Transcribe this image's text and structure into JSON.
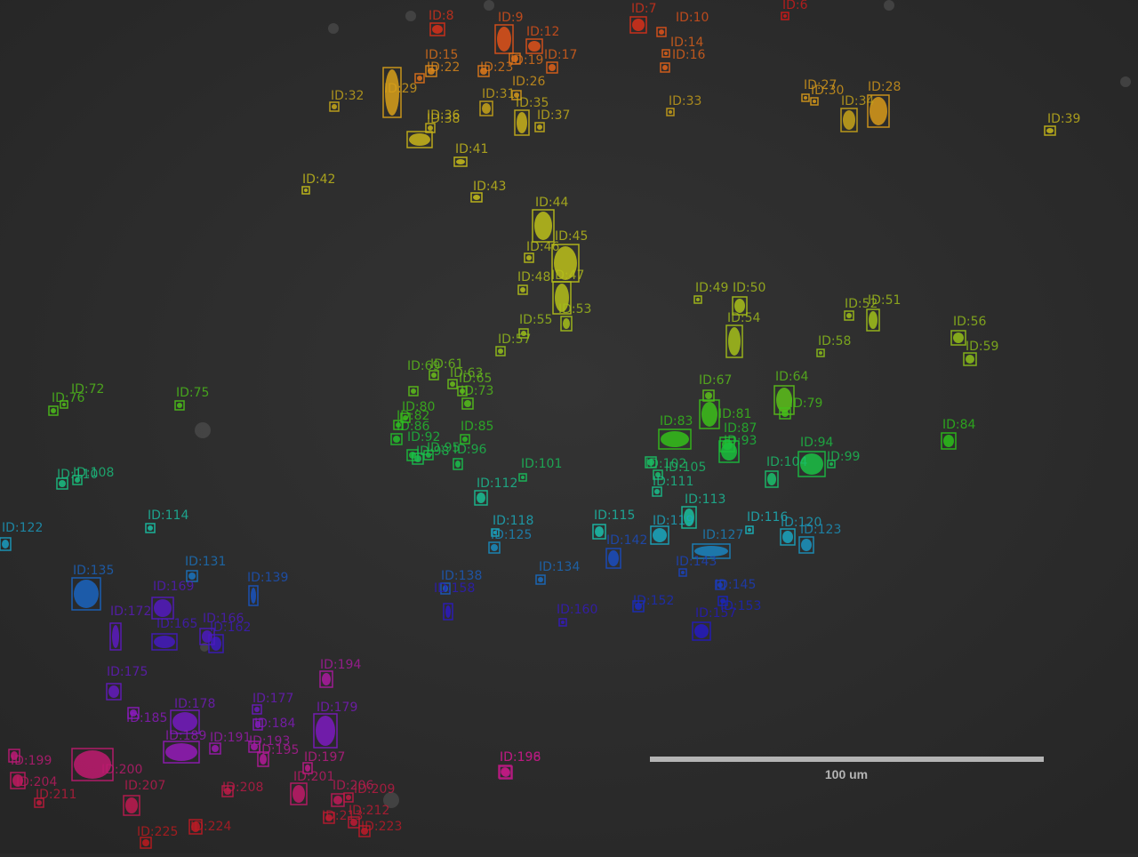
{
  "image": {
    "description": "Fluorescence/phase-contrast microscopy field with labeled detections",
    "background_color": "#2a2a2a"
  },
  "scale_bar": {
    "label": "100 um",
    "color": "#b4b4b4"
  },
  "detections": [
    {
      "id": "ID:6",
      "color": "#d11a1a"
    },
    {
      "id": "ID:7",
      "color": "#d8301a"
    },
    {
      "id": "ID:8",
      "color": "#d8301a"
    },
    {
      "id": "ID:9",
      "color": "#e0521a"
    },
    {
      "id": "ID:10",
      "color": "#e0521a"
    },
    {
      "id": "ID:12",
      "color": "#e0521a"
    },
    {
      "id": "ID:14",
      "color": "#e0621a"
    },
    {
      "id": "ID:15",
      "color": "#e0721a"
    },
    {
      "id": "ID:16",
      "color": "#e0621a"
    },
    {
      "id": "ID:17",
      "color": "#e0621a"
    },
    {
      "id": "ID:19",
      "color": "#e0721a"
    },
    {
      "id": "ID:22",
      "color": "#e08a1a"
    },
    {
      "id": "ID:23",
      "color": "#e07a1a"
    },
    {
      "id": "ID:26",
      "color": "#d89a1a"
    },
    {
      "id": "ID:27",
      "color": "#d89a1a"
    },
    {
      "id": "ID:28",
      "color": "#d89a1a"
    },
    {
      "id": "ID:29",
      "color": "#d8a01a"
    },
    {
      "id": "ID:30",
      "color": "#d89a1a"
    },
    {
      "id": "ID:31",
      "color": "#c8a41a"
    },
    {
      "id": "ID:32",
      "color": "#c8a81a"
    },
    {
      "id": "ID:33",
      "color": "#c8a01a"
    },
    {
      "id": "ID:34",
      "color": "#c8a41a"
    },
    {
      "id": "ID:35",
      "color": "#c8b01a"
    },
    {
      "id": "ID:36",
      "color": "#c8b41a"
    },
    {
      "id": "ID:37",
      "color": "#c8b01a"
    },
    {
      "id": "ID:38",
      "color": "#c8b41a"
    },
    {
      "id": "ID:39",
      "color": "#c8b81a"
    },
    {
      "id": "ID:41",
      "color": "#c8bc1a"
    },
    {
      "id": "ID:42",
      "color": "#c8c01a"
    },
    {
      "id": "ID:43",
      "color": "#c8c01a"
    },
    {
      "id": "ID:44",
      "color": "#bcc01a"
    },
    {
      "id": "ID:45",
      "color": "#bcc01a"
    },
    {
      "id": "ID:46",
      "color": "#bcc01a"
    },
    {
      "id": "ID:47",
      "color": "#b4c01a"
    },
    {
      "id": "ID:48",
      "color": "#b4c01a"
    },
    {
      "id": "ID:49",
      "color": "#a8c01a"
    },
    {
      "id": "ID:50",
      "color": "#a8c01a"
    },
    {
      "id": "ID:51",
      "color": "#a0c01a"
    },
    {
      "id": "ID:52",
      "color": "#a0c01a"
    },
    {
      "id": "ID:53",
      "color": "#a4c01a"
    },
    {
      "id": "ID:54",
      "color": "#a4c01a"
    },
    {
      "id": "ID:55",
      "color": "#9cc01a"
    },
    {
      "id": "ID:56",
      "color": "#94c01a"
    },
    {
      "id": "ID:57",
      "color": "#94c01a"
    },
    {
      "id": "ID:58",
      "color": "#8cc01a"
    },
    {
      "id": "ID:59",
      "color": "#8cc01a"
    },
    {
      "id": "ID:61",
      "color": "#6cc01a"
    },
    {
      "id": "ID:63",
      "color": "#6cc01a"
    },
    {
      "id": "ID:64",
      "color": "#5cc01a"
    },
    {
      "id": "ID:65",
      "color": "#64c01a"
    },
    {
      "id": "ID:67",
      "color": "#5cc01a"
    },
    {
      "id": "ID:69",
      "color": "#5cc01a"
    },
    {
      "id": "ID:72",
      "color": "#54c01a"
    },
    {
      "id": "ID:73",
      "color": "#54c01a"
    },
    {
      "id": "ID:75",
      "color": "#4cc01a"
    },
    {
      "id": "ID:76",
      "color": "#4cc01a"
    },
    {
      "id": "ID:79",
      "color": "#44c01a"
    },
    {
      "id": "ID:80",
      "color": "#3cc01a"
    },
    {
      "id": "ID:81",
      "color": "#3cc01a"
    },
    {
      "id": "ID:82",
      "color": "#34c01a"
    },
    {
      "id": "ID:83",
      "color": "#34c01a"
    },
    {
      "id": "ID:84",
      "color": "#2cc01a"
    },
    {
      "id": "ID:85",
      "color": "#2cc024"
    },
    {
      "id": "ID:86",
      "color": "#24c02c"
    },
    {
      "id": "ID:87",
      "color": "#24c02c"
    },
    {
      "id": "ID:92",
      "color": "#1ac03c"
    },
    {
      "id": "ID:93",
      "color": "#1ac03c"
    },
    {
      "id": "ID:94",
      "color": "#1ac044"
    },
    {
      "id": "ID:95",
      "color": "#1ac044"
    },
    {
      "id": "ID:96",
      "color": "#1ac04c"
    },
    {
      "id": "ID:98",
      "color": "#1ac050"
    },
    {
      "id": "ID:99",
      "color": "#1ac054"
    },
    {
      "id": "ID:101",
      "color": "#1ac05c"
    },
    {
      "id": "ID:102",
      "color": "#1ac064"
    },
    {
      "id": "ID:104",
      "color": "#1ac06c"
    },
    {
      "id": "ID:105",
      "color": "#1ac070"
    },
    {
      "id": "ID:108",
      "color": "#1ac07c"
    },
    {
      "id": "ID:110",
      "color": "#1ac084"
    },
    {
      "id": "ID:111",
      "color": "#1ac08c"
    },
    {
      "id": "ID:112",
      "color": "#1ac094"
    },
    {
      "id": "ID:113",
      "color": "#1ac09c"
    },
    {
      "id": "ID:114",
      "color": "#1ac0a4"
    },
    {
      "id": "ID:115",
      "color": "#1ac0ac"
    },
    {
      "id": "ID:116",
      "color": "#1ab8c0"
    },
    {
      "id": "ID:118",
      "color": "#1ab0c0"
    },
    {
      "id": "ID:119",
      "color": "#1aa8c0"
    },
    {
      "id": "ID:120",
      "color": "#1aa4c0"
    },
    {
      "id": "ID:122",
      "color": "#1a9cc0"
    },
    {
      "id": "ID:123",
      "color": "#1a94c0"
    },
    {
      "id": "ID:125",
      "color": "#1a8cc0"
    },
    {
      "id": "ID:127",
      "color": "#1a84c0"
    },
    {
      "id": "ID:131",
      "color": "#1a74c0"
    },
    {
      "id": "ID:134",
      "color": "#1a6cc0"
    },
    {
      "id": "ID:135",
      "color": "#1a64c0"
    },
    {
      "id": "ID:138",
      "color": "#1a5cc0"
    },
    {
      "id": "ID:139",
      "color": "#1a54c0"
    },
    {
      "id": "ID:142",
      "color": "#1a4cc0"
    },
    {
      "id": "ID:143",
      "color": "#1a44c0"
    },
    {
      "id": "ID:145",
      "color": "#1a3cc0"
    },
    {
      "id": "ID:152",
      "color": "#1a2cc0"
    },
    {
      "id": "ID:153",
      "color": "#1a24c0"
    },
    {
      "id": "ID:157",
      "color": "#241ac0"
    },
    {
      "id": "ID:158",
      "color": "#2c1ac0"
    },
    {
      "id": "ID:160",
      "color": "#341ac0"
    },
    {
      "id": "ID:162",
      "color": "#3c1ac0"
    },
    {
      "id": "ID:165",
      "color": "#441ac0"
    },
    {
      "id": "ID:166",
      "color": "#4c1ac0"
    },
    {
      "id": "ID:169",
      "color": "#541ac0"
    },
    {
      "id": "ID:172",
      "color": "#5c1ac0"
    },
    {
      "id": "ID:175",
      "color": "#641ac0"
    },
    {
      "id": "ID:177",
      "color": "#6c1ac0"
    },
    {
      "id": "ID:178",
      "color": "#741ac0"
    },
    {
      "id": "ID:179",
      "color": "#7c1ac0"
    },
    {
      "id": "ID:184",
      "color": "#841ac0"
    },
    {
      "id": "ID:185",
      "color": "#8c1ac0"
    },
    {
      "id": "ID:189",
      "color": "#941ab8"
    },
    {
      "id": "ID:191",
      "color": "#9c1ab0"
    },
    {
      "id": "ID:193",
      "color": "#a41aa8"
    },
    {
      "id": "ID:194",
      "color": "#ac1aa0"
    },
    {
      "id": "ID:195",
      "color": "#b41a98"
    },
    {
      "id": "ID:196",
      "color": "#bc1a90"
    },
    {
      "id": "ID:197",
      "color": "#c01a88"
    },
    {
      "id": "ID:198",
      "color": "#c01a80"
    },
    {
      "id": "ID:199",
      "color": "#c01a78"
    },
    {
      "id": "ID:200",
      "color": "#c01a70"
    },
    {
      "id": "ID:201",
      "color": "#c01a68"
    },
    {
      "id": "ID:204",
      "color": "#c01a60"
    },
    {
      "id": "ID:206",
      "color": "#c01a58"
    },
    {
      "id": "ID:207",
      "color": "#c01a50"
    },
    {
      "id": "ID:208",
      "color": "#c01a48"
    },
    {
      "id": "ID:209",
      "color": "#c01a44"
    },
    {
      "id": "ID:211",
      "color": "#c01a3c"
    },
    {
      "id": "ID:212",
      "color": "#c01a34"
    },
    {
      "id": "ID:213",
      "color": "#c01a30"
    },
    {
      "id": "ID:223",
      "color": "#c01a28"
    },
    {
      "id": "ID:224",
      "color": "#c01a24"
    },
    {
      "id": "ID:225",
      "color": "#c01a1e"
    }
  ]
}
